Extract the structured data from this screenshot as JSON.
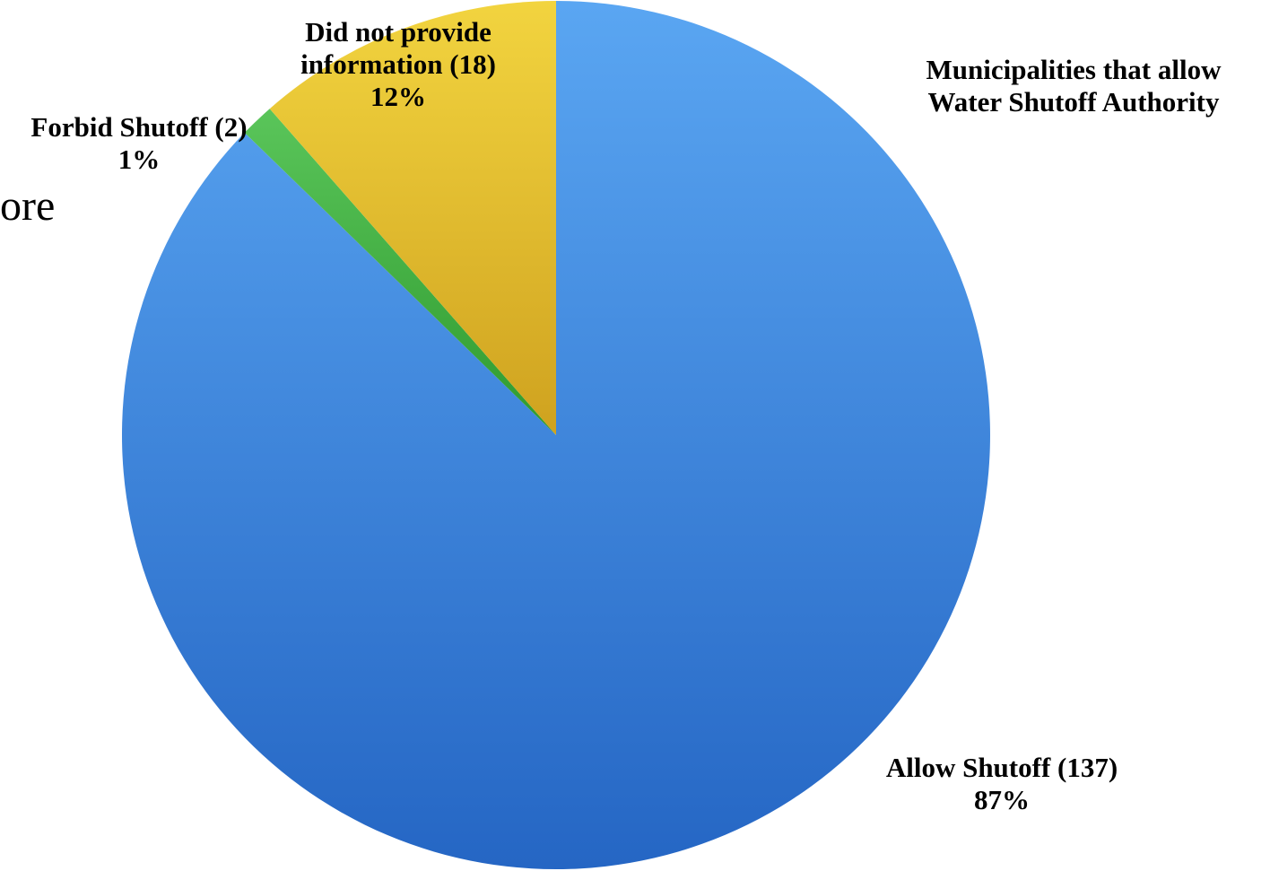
{
  "page_fragment": "ore",
  "chart_data": {
    "type": "pie",
    "title": "Municipalities that allow Water Shutoff Authority",
    "title_lines": [
      "Municipalities that allow",
      "Water Shutoff Authority"
    ],
    "slices": [
      {
        "label": "Allow Shutoff (137)",
        "name": "Allow Shutoff",
        "count": 137,
        "percent_label": "87%",
        "value": 137,
        "color": "#3a87dc",
        "color_light": "#5aa6f2",
        "color_dark": "#2566c4"
      },
      {
        "label": "Forbid Shutoff (2)",
        "name": "Forbid Shutoff",
        "count": 2,
        "percent_label": "1%",
        "value": 2,
        "color": "#43b143",
        "color_light": "#5ac55a",
        "color_dark": "#2f9a2f"
      },
      {
        "label_lines": [
          "Did not provide",
          "information (18)"
        ],
        "label": "Did not provide information (18)",
        "name": "Did not provide information",
        "count": 18,
        "percent_label": "12%",
        "value": 18,
        "color": "#e6bd2e",
        "color_light": "#f2d43f",
        "color_dark": "#cfa21f"
      }
    ],
    "start_angle_deg": 0,
    "direction": "clockwise",
    "legend": "none"
  }
}
